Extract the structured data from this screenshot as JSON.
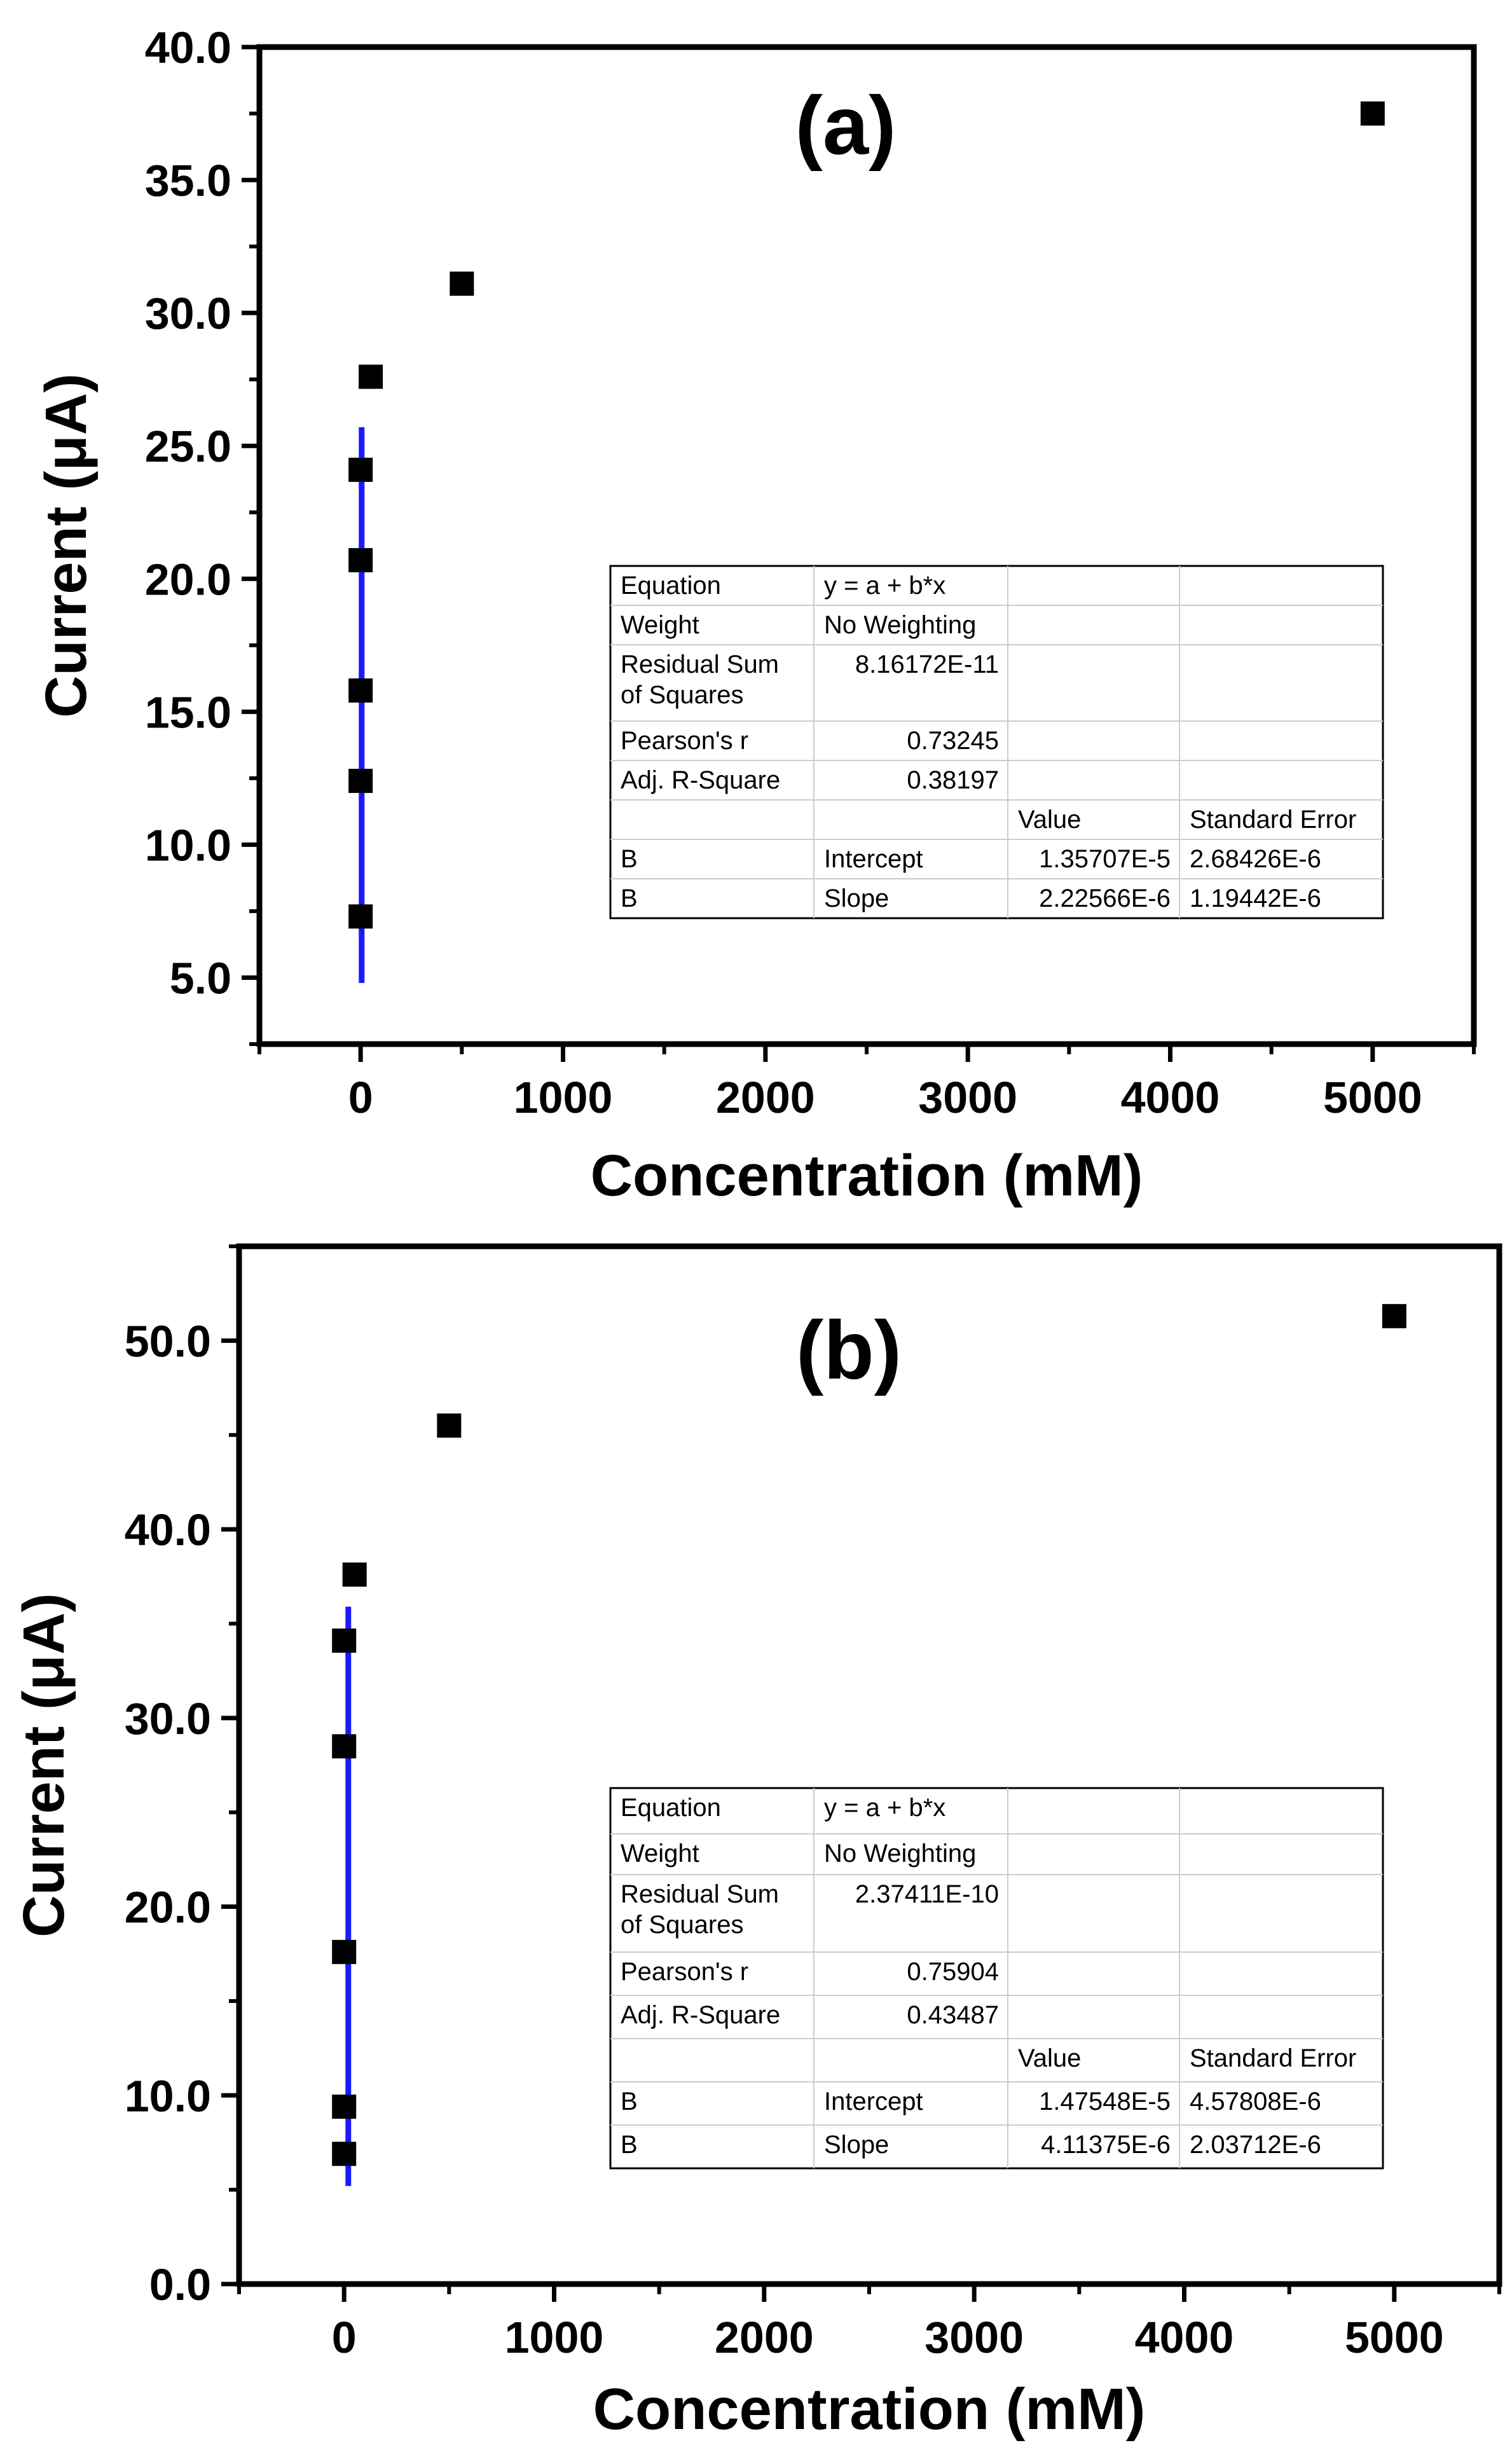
{
  "chart_data": [
    {
      "type": "scatter",
      "panel_label": "(a)",
      "xlabel": "Concentration (mM)",
      "ylabel": "Current (μA)",
      "xlim": [
        -500,
        5500
      ],
      "ylim": [
        2.5,
        40.0
      ],
      "x_ticks": [
        "0",
        "1000",
        "2000",
        "3000",
        "4000",
        "5000"
      ],
      "y_ticks": [
        "5.0",
        "10.0",
        "15.0",
        "20.0",
        "25.0",
        "30.0",
        "35.0",
        "40.0"
      ],
      "points": [
        {
          "x": 0,
          "y": 7.3
        },
        {
          "x": 0,
          "y": 12.4
        },
        {
          "x": 0,
          "y": 15.8
        },
        {
          "x": 0,
          "y": 20.7
        },
        {
          "x": 0,
          "y": 24.1
        },
        {
          "x": 50,
          "y": 27.6
        },
        {
          "x": 500,
          "y": 31.1
        },
        {
          "x": 5000,
          "y": 37.5
        }
      ],
      "fit_line": {
        "x": 5,
        "y_start": 4.8,
        "y_end": 25.7,
        "color": "#1a1aff"
      },
      "fit_table": {
        "rows": [
          [
            "Equation",
            "y = a + b*x",
            "",
            ""
          ],
          [
            "Weight",
            "No Weighting",
            "",
            ""
          ],
          [
            "Residual Sum|of Squares",
            "8.16172E-11",
            "",
            ""
          ],
          [
            "Pearson's r",
            "0.73245",
            "",
            ""
          ],
          [
            "Adj. R-Square",
            "0.38197",
            "",
            ""
          ],
          [
            "",
            "",
            "Value",
            "Standard Error"
          ],
          [
            "B",
            "Intercept",
            "1.35707E-5",
            "2.68426E-6"
          ],
          [
            "B",
            "Slope",
            "2.22566E-6",
            "1.19442E-6"
          ]
        ]
      }
    },
    {
      "type": "scatter",
      "panel_label": "(b)",
      "xlabel": "Concentration (mM)",
      "ylabel": "Current (μA)",
      "xlim": [
        -500,
        5500
      ],
      "ylim": [
        0.0,
        55.0
      ],
      "x_ticks": [
        "0",
        "1000",
        "2000",
        "3000",
        "4000",
        "5000"
      ],
      "y_ticks": [
        "0.0",
        "10.0",
        "20.0",
        "30.0",
        "40.0",
        "50.0"
      ],
      "points": [
        {
          "x": 0,
          "y": 6.9
        },
        {
          "x": 0,
          "y": 9.4
        },
        {
          "x": 0,
          "y": 17.6
        },
        {
          "x": 0,
          "y": 28.5
        },
        {
          "x": 0,
          "y": 34.1
        },
        {
          "x": 50,
          "y": 37.6
        },
        {
          "x": 500,
          "y": 45.5
        },
        {
          "x": 5000,
          "y": 51.3
        }
      ],
      "fit_line": {
        "x": 20,
        "y_start": 5.2,
        "y_end": 35.9,
        "color": "#1a1aff"
      },
      "fit_table": {
        "rows": [
          [
            "Equation",
            "y = a + b*x",
            "",
            ""
          ],
          [
            "Weight",
            "No Weighting",
            "",
            ""
          ],
          [
            "Residual Sum|of Squares",
            "2.37411E-10",
            "",
            ""
          ],
          [
            "Pearson's r",
            "0.75904",
            "",
            ""
          ],
          [
            "Adj. R-Square",
            "0.43487",
            "",
            ""
          ],
          [
            "",
            "",
            "Value",
            "Standard Error"
          ],
          [
            "B",
            "Intercept",
            "1.47548E-5",
            "4.57808E-6"
          ],
          [
            "B",
            "Slope",
            "4.11375E-6",
            "2.03712E-6"
          ]
        ]
      }
    }
  ]
}
